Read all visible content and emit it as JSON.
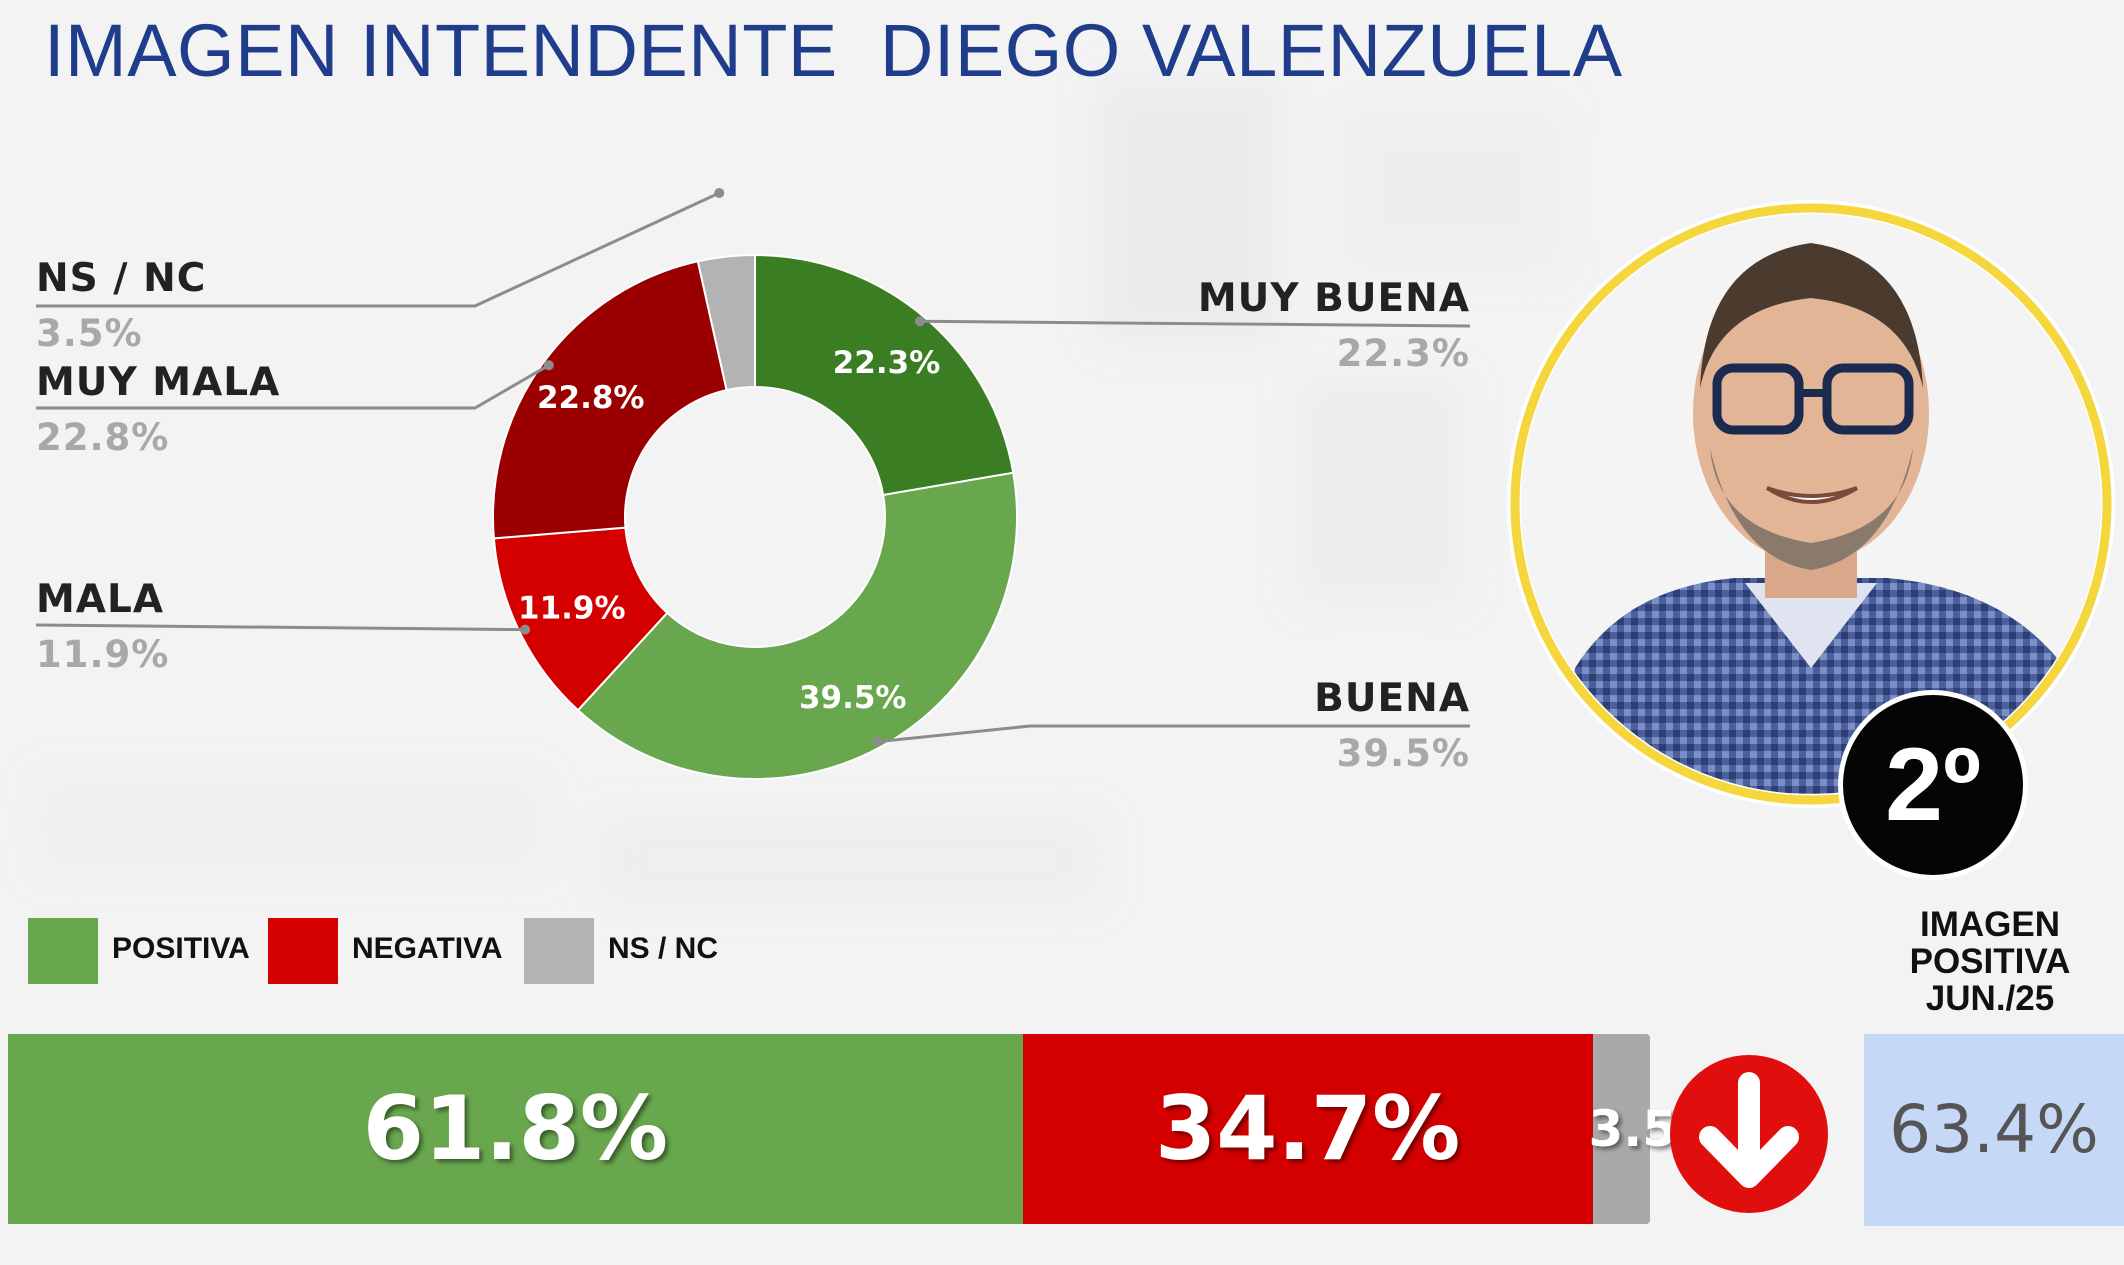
{
  "title": "IMAGEN INTENDENTE  DIEGO VALENZUELA",
  "colors": {
    "muy_buena": "#3a7d22",
    "buena": "#68a74e",
    "mala": "#d40000",
    "muy_mala": "#9a0000",
    "ns_nc": "#b3b3b3",
    "title": "#1f3d8a",
    "previous_box": "#c5d8f5",
    "arrow_circle": "#e10e0e",
    "portrait_ring": "#f5d63c"
  },
  "chart_data": [
    {
      "type": "pie",
      "variant": "donut",
      "slices": [
        {
          "key": "muy_buena",
          "label": "MUY BUENA",
          "value": 22.3,
          "display": "22.3%"
        },
        {
          "key": "buena",
          "label": "BUENA",
          "value": 39.5,
          "display": "39.5%"
        },
        {
          "key": "mala",
          "label": "MALA",
          "value": 11.9,
          "display": "11.9%"
        },
        {
          "key": "muy_mala",
          "label": "MUY MALA",
          "value": 22.8,
          "display": "22.8%"
        },
        {
          "key": "ns_nc",
          "label": "NS / NC",
          "value": 3.5,
          "display": "3.5%"
        }
      ]
    },
    {
      "type": "bar",
      "variant": "stacked-horizontal-100",
      "legend": [
        {
          "key": "positiva",
          "label": "POSITIVA"
        },
        {
          "key": "negativa",
          "label": "NEGATIVA"
        },
        {
          "key": "ns_nc",
          "label": "NS / NC"
        }
      ],
      "segments": [
        {
          "key": "positiva",
          "value": 61.8,
          "display": "61.8%"
        },
        {
          "key": "negativa",
          "value": 34.7,
          "display": "34.7%"
        },
        {
          "key": "ns_nc",
          "value": 3.5,
          "display": "3.5%"
        }
      ],
      "trend": "down"
    }
  ],
  "previous": {
    "title_lines": [
      "IMAGEN",
      "POSITIVA",
      "JUN./25"
    ],
    "value": "63.4%"
  },
  "portrait": {
    "icon": "person-portrait",
    "rank": "2º"
  }
}
